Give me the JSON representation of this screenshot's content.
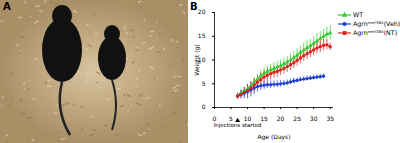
{
  "panel_labels": [
    "A",
    "B"
  ],
  "chart_data": {
    "type": "line",
    "x": [
      7,
      8,
      9,
      10,
      11,
      12,
      13,
      14,
      15,
      16,
      17,
      18,
      19,
      20,
      21,
      22,
      23,
      24,
      25,
      26,
      27,
      28,
      29,
      30,
      31,
      32,
      33,
      34,
      35
    ],
    "xlabel": "Age (Days)",
    "ylabel": "Weight (g)",
    "xlim": [
      0,
      36
    ],
    "xticks": [
      0,
      5,
      10,
      15,
      20,
      25,
      30,
      35
    ],
    "ylim": [
      0,
      20
    ],
    "yticks": [
      0,
      5,
      10,
      15,
      20
    ],
    "grid": false,
    "legend": "right",
    "annotations": [
      {
        "text": "Injections started",
        "x": 7
      }
    ],
    "series": [
      {
        "name": "WT",
        "color": "#33cc33",
        "marker": "triangle",
        "values": [
          2.5,
          3.0,
          3.5,
          4.0,
          4.6,
          5.3,
          6.0,
          6.7,
          7.2,
          7.6,
          7.9,
          8.2,
          8.5,
          8.8,
          9.2,
          9.6,
          10.0,
          10.5,
          11.0,
          11.6,
          12.1,
          12.6,
          13.0,
          13.5,
          14.0,
          14.5,
          15.0,
          15.4,
          15.7
        ],
        "errors": [
          0.5,
          0.6,
          0.7,
          0.8,
          0.9,
          1.0,
          1.0,
          1.1,
          1.1,
          1.1,
          1.1,
          1.2,
          1.2,
          1.2,
          1.2,
          1.2,
          1.3,
          1.3,
          1.3,
          1.3,
          1.4,
          1.4,
          1.4,
          1.4,
          1.5,
          1.5,
          1.5,
          1.5,
          1.5
        ]
      },
      {
        "name": "Agrnⁿᵐᶠ³⁸⁰(Veh)",
        "color": "#1f3fd0",
        "marker": "circle",
        "values": [
          2.4,
          2.7,
          3.0,
          3.3,
          3.7,
          4.1,
          4.4,
          4.6,
          4.7,
          4.8,
          4.8,
          4.9,
          4.9,
          5.0,
          5.1,
          5.2,
          5.4,
          5.6,
          5.7,
          5.9,
          6.0,
          6.1,
          6.2,
          6.3,
          6.4,
          6.5,
          6.6,
          null,
          null
        ],
        "errors": [
          0.6,
          0.9,
          1.2,
          1.5,
          1.5,
          1.4,
          1.2,
          1.0,
          0.9,
          0.8,
          0.8,
          0.7,
          0.7,
          0.7,
          0.6,
          0.6,
          0.6,
          0.6,
          0.5,
          0.5,
          0.5,
          0.5,
          0.5,
          0.5,
          0.5,
          0.5,
          0.5,
          null,
          null
        ]
      },
      {
        "name": "Agrnⁿᵐᶠ³⁸⁰(NT)",
        "color": "#e0201c",
        "marker": "square",
        "values": [
          2.4,
          2.8,
          3.2,
          3.6,
          4.1,
          4.7,
          5.3,
          5.9,
          6.4,
          6.8,
          7.1,
          7.4,
          7.6,
          7.9,
          8.2,
          8.6,
          9.0,
          9.4,
          9.9,
          10.4,
          10.9,
          11.3,
          11.7,
          12.1,
          12.5,
          12.8,
          13.1,
          13.2,
          12.8
        ],
        "errors": [
          0.6,
          0.8,
          1.0,
          1.2,
          1.3,
          1.4,
          1.4,
          1.4,
          1.3,
          1.3,
          1.3,
          1.2,
          1.2,
          1.2,
          1.2,
          1.2,
          1.2,
          1.2,
          1.2,
          1.2,
          1.2,
          1.2,
          1.2,
          1.2,
          1.2,
          1.2,
          1.2,
          1.0,
          0.8
        ]
      }
    ]
  }
}
